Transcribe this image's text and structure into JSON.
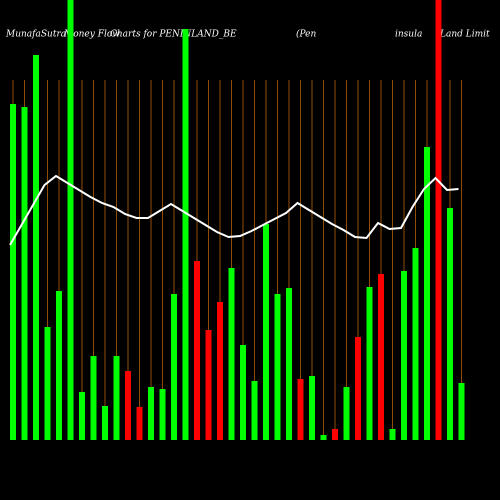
{
  "chart_data": {
    "type": "bar",
    "title_parts": [
      "MunafaSutra",
      "Money Flow",
      "Charts for PENINLAND_BE",
      "(Pen",
      "insula",
      "Land Limit"
    ],
    "categories": [
      null,
      null,
      null,
      null,
      null,
      null,
      null,
      null,
      null,
      null,
      null,
      null,
      null,
      null,
      null,
      null,
      null,
      null,
      null,
      null,
      null,
      null,
      null,
      null,
      null,
      null,
      null,
      null,
      null,
      null,
      null,
      null,
      null,
      null,
      null,
      null,
      null,
      null,
      null,
      null
    ],
    "values": [
      336,
      333,
      385,
      113,
      149,
      440,
      48,
      84,
      34,
      84,
      69,
      33,
      53,
      51,
      146,
      411,
      179,
      110,
      138,
      172,
      95,
      59,
      216,
      146,
      152,
      61,
      64,
      5,
      11,
      53,
      103,
      153,
      166,
      11,
      169,
      192,
      293,
      440,
      232,
      57
    ],
    "bar_colors": [
      "#00ff00",
      "#00ff00",
      "#00ff00",
      "#00ff00",
      "#00ff00",
      "#00ff00",
      "#00ff00",
      "#00ff00",
      "#00ff00",
      "#00ff00",
      "#ff0000",
      "#ff0000",
      "#00ff00",
      "#00ff00",
      "#00ff00",
      "#00ff00",
      "#ff0000",
      "#ff0000",
      "#ff0000",
      "#00ff00",
      "#00ff00",
      "#00ff00",
      "#00ff00",
      "#00ff00",
      "#00ff00",
      "#ff0000",
      "#00ff00",
      "#00ff00",
      "#ff0000",
      "#00ff00",
      "#ff0000",
      "#00ff00",
      "#ff0000",
      "#00ff00",
      "#00ff00",
      "#00ff00",
      "#00ff00",
      "#ff0000",
      "#00ff00",
      "#00ff00"
    ],
    "line": {
      "color": "#ffffff",
      "values": [
        195,
        215,
        235,
        255,
        264,
        257,
        250,
        243,
        237,
        233,
        226,
        222,
        222,
        229,
        236,
        229,
        222,
        215,
        208,
        203,
        204,
        209,
        215,
        221,
        227,
        237,
        230,
        223,
        216,
        210,
        203,
        202,
        217,
        211,
        212,
        233,
        251,
        262,
        250,
        251
      ]
    },
    "grid_color": "#b8600b",
    "ylim": [
      0,
      440
    ]
  }
}
